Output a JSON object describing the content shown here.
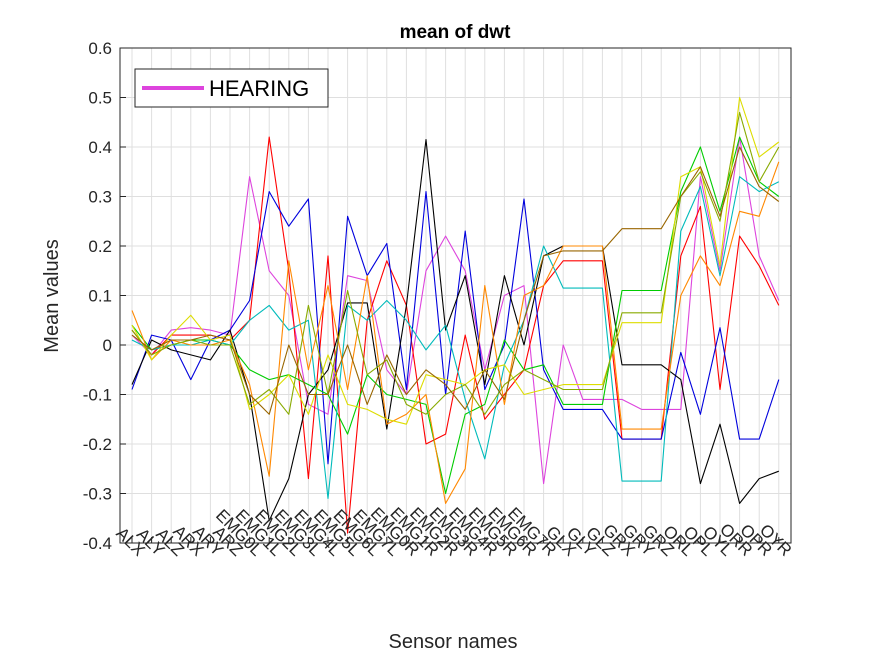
{
  "chart_data": {
    "type": "line",
    "title": "mean of dwt",
    "xlabel": "Sensor names",
    "ylabel": "Mean values",
    "ylim": [
      -0.4,
      0.6
    ],
    "yticks": [
      "-0.4",
      "-0.3",
      "-0.2",
      "-0.1",
      "0",
      "0.1",
      "0.2",
      "0.3",
      "0.4",
      "0.5",
      "0.6"
    ],
    "grid": true,
    "legend": {
      "placement": "top-left",
      "entries": [
        {
          "name": "HEARING",
          "color": "#dd44dd"
        }
      ]
    },
    "categories": [
      "ALX",
      "ALY",
      "ALZ",
      "ARX",
      "ARY",
      "ARZ",
      "EMG0L",
      "EMG1L",
      "EMG2L",
      "EMG3L",
      "EMG4L",
      "EMG5L",
      "EMG6L",
      "EMG7L",
      "EMG0R",
      "EMG1R",
      "EMG2R",
      "EMG3R",
      "EMG4R",
      "EMG5R",
      "EMG6R",
      "EMG7R",
      "GLX",
      "GLY",
      "GLZ",
      "GRX",
      "GRY",
      "GRZ",
      "ORL",
      "OPL",
      "OYL",
      "ORR",
      "OPR",
      "OYR"
    ],
    "series": [
      {
        "color": "#dd44dd",
        "values": [
          0.02,
          -0.02,
          0.03,
          0.035,
          0.03,
          0.02,
          0.34,
          0.15,
          0.1,
          -0.12,
          -0.14,
          0.14,
          0.13,
          -0.05,
          -0.1,
          0.15,
          0.22,
          0.15,
          -0.05,
          0.1,
          0.12,
          -0.28,
          0.0,
          -0.11,
          -0.11,
          -0.11,
          -0.13,
          -0.13,
          -0.13,
          0.34,
          0.15,
          0.42,
          0.18,
          0.09
        ]
      },
      {
        "color": "#ff0000",
        "values": [
          0.03,
          -0.02,
          0.02,
          0.02,
          0.02,
          0.01,
          0.05,
          0.42,
          0.15,
          -0.27,
          0.18,
          -0.38,
          0.05,
          0.17,
          0.08,
          -0.2,
          -0.18,
          0.02,
          -0.15,
          -0.1,
          -0.05,
          0.12,
          0.17,
          0.17,
          0.17,
          -0.19,
          -0.19,
          -0.19,
          0.18,
          0.28,
          -0.09,
          0.22,
          0.16,
          0.08
        ]
      },
      {
        "color": "#0000dd",
        "values": [
          -0.09,
          0.02,
          0.01,
          -0.07,
          0.01,
          0.03,
          0.09,
          0.31,
          0.24,
          0.295,
          -0.24,
          0.26,
          0.14,
          0.205,
          -0.09,
          0.31,
          -0.1,
          0.23,
          -0.09,
          0.0,
          0.295,
          -0.05,
          -0.13,
          -0.13,
          -0.13,
          -0.19,
          -0.19,
          -0.19,
          -0.015,
          -0.14,
          0.035,
          -0.19,
          -0.19,
          -0.07
        ]
      },
      {
        "color": "#000000",
        "values": [
          -0.08,
          0.01,
          -0.01,
          -0.02,
          -0.03,
          0.03,
          -0.1,
          -0.355,
          -0.27,
          -0.1,
          -0.05,
          0.085,
          0.085,
          -0.17,
          0.08,
          0.415,
          0.03,
          0.14,
          -0.08,
          0.14,
          0.0,
          0.18,
          0.2,
          0.2,
          0.2,
          -0.04,
          -0.04,
          -0.04,
          -0.07,
          -0.28,
          -0.16,
          -0.32,
          -0.27,
          -0.255
        ]
      },
      {
        "color": "#00cc00",
        "values": [
          0.04,
          -0.01,
          0.0,
          0.01,
          0.01,
          0.0,
          -0.05,
          -0.07,
          -0.06,
          -0.08,
          -0.1,
          -0.18,
          -0.06,
          -0.1,
          -0.11,
          -0.12,
          -0.3,
          -0.14,
          -0.12,
          0.01,
          -0.05,
          -0.04,
          -0.12,
          -0.12,
          -0.12,
          0.11,
          0.11,
          0.11,
          0.31,
          0.4,
          0.27,
          0.42,
          0.33,
          0.3
        ]
      },
      {
        "color": "#00bbbb",
        "values": [
          0.01,
          -0.01,
          0.0,
          0.0,
          0.01,
          0.0,
          0.05,
          0.08,
          0.03,
          0.05,
          -0.31,
          0.08,
          0.05,
          0.09,
          0.05,
          -0.01,
          0.04,
          -0.11,
          -0.23,
          -0.04,
          0.05,
          0.2,
          0.115,
          0.115,
          0.115,
          -0.275,
          -0.275,
          -0.275,
          0.23,
          0.32,
          0.14,
          0.34,
          0.31,
          0.33
        ]
      },
      {
        "color": "#ff8800",
        "values": [
          0.07,
          -0.03,
          0.01,
          0.0,
          0.0,
          0.01,
          -0.08,
          -0.265,
          0.17,
          -0.05,
          0.12,
          -0.09,
          0.14,
          -0.16,
          -0.14,
          -0.1,
          -0.32,
          -0.25,
          0.12,
          -0.12,
          0.1,
          0.12,
          0.2,
          0.2,
          0.2,
          -0.17,
          -0.17,
          -0.17,
          0.1,
          0.18,
          0.12,
          0.27,
          0.26,
          0.37
        ]
      },
      {
        "color": "#dddd00",
        "values": [
          0.04,
          -0.03,
          0.02,
          0.06,
          0.01,
          0.02,
          -0.13,
          -0.1,
          -0.06,
          -0.14,
          -0.02,
          -0.12,
          -0.13,
          -0.15,
          -0.16,
          -0.06,
          -0.07,
          -0.08,
          -0.05,
          -0.04,
          -0.1,
          -0.09,
          -0.08,
          -0.08,
          -0.08,
          0.045,
          0.045,
          0.045,
          0.34,
          0.36,
          0.16,
          0.5,
          0.38,
          0.41
        ]
      },
      {
        "color": "#88aa00",
        "values": [
          0.03,
          -0.02,
          0.0,
          0.01,
          0.0,
          0.0,
          -0.12,
          -0.09,
          -0.14,
          0.08,
          -0.1,
          0.11,
          -0.06,
          -0.03,
          -0.12,
          -0.14,
          -0.1,
          -0.08,
          -0.14,
          -0.08,
          -0.05,
          -0.07,
          -0.09,
          -0.09,
          -0.09,
          0.065,
          0.065,
          0.065,
          0.3,
          0.35,
          0.25,
          0.47,
          0.33,
          0.4
        ]
      },
      {
        "color": "#996600",
        "values": [
          0.02,
          -0.01,
          0.01,
          0.01,
          0.02,
          0.01,
          -0.1,
          -0.14,
          0.0,
          -0.1,
          -0.1,
          0.0,
          -0.12,
          -0.02,
          -0.1,
          -0.05,
          -0.08,
          -0.13,
          -0.05,
          -0.11,
          0.05,
          0.18,
          0.19,
          0.19,
          0.19,
          0.235,
          0.235,
          0.235,
          0.3,
          0.36,
          0.26,
          0.4,
          0.32,
          0.29
        ]
      }
    ]
  }
}
